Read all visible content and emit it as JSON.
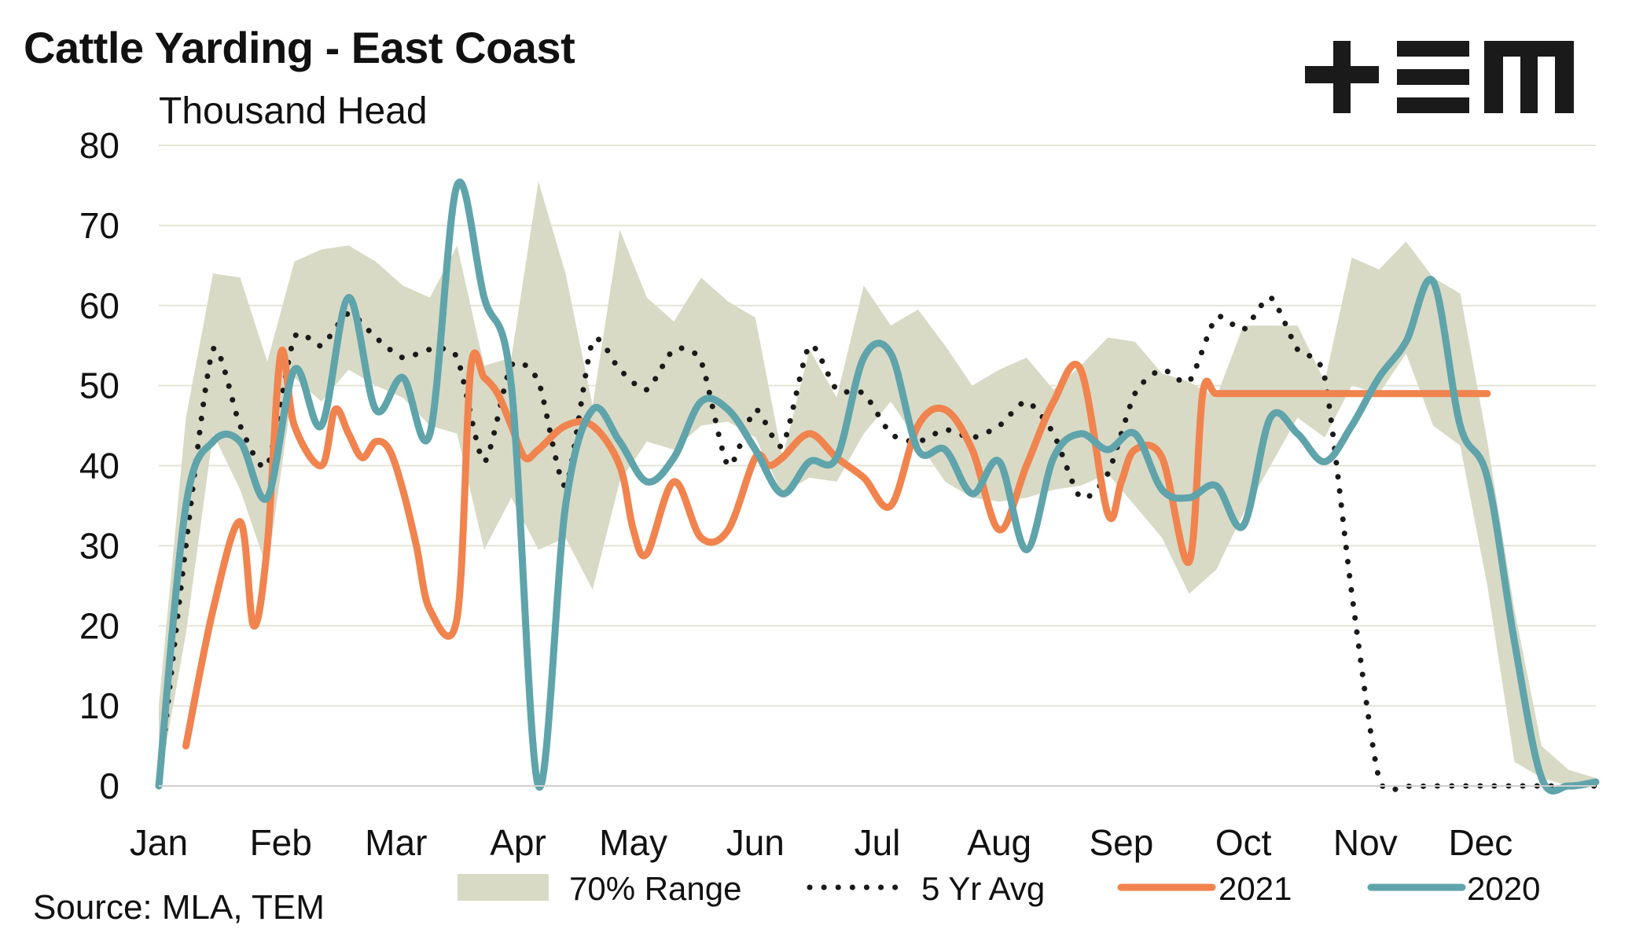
{
  "title": "Cattle Yarding - East Coast",
  "subtitle": "Thousand Head",
  "source": "Source: MLA, TEM",
  "logo_text": "+EM",
  "colors": {
    "range": "#d9dac6",
    "avg": "#1a1a1a",
    "y2021": "#f0834e",
    "y2020": "#5fa3ab",
    "grid": "#e4e4d8"
  },
  "chart_data": {
    "type": "line",
    "title": "Cattle Yarding - East Coast",
    "ylabel": "Thousand Head",
    "ylim": [
      0,
      80
    ],
    "y_ticks": [
      0,
      10,
      20,
      30,
      40,
      50,
      60,
      70,
      80
    ],
    "x_range": [
      0,
      53
    ],
    "x_unit": "week of year",
    "month_labels": [
      "Jan",
      "Feb",
      "Mar",
      "Apr",
      "May",
      "Jun",
      "Jul",
      "Aug",
      "Sep",
      "Oct",
      "Nov",
      "Dec"
    ],
    "month_label_weeks": [
      0,
      4.5,
      8.75,
      13.25,
      17.5,
      22,
      26.5,
      31,
      35.5,
      40,
      44.5,
      48.75
    ],
    "grid": true,
    "legend_position": "bottom",
    "legend": [
      "70% Range",
      "5 Yr Avg",
      "2021",
      "2020"
    ],
    "range_series": {
      "name": "70% Range",
      "x": [
        0,
        1,
        2,
        3,
        4,
        5,
        6,
        7,
        8,
        9,
        10,
        11,
        12,
        13,
        14,
        15,
        16,
        17,
        18,
        19,
        20,
        21,
        22,
        23,
        24,
        25,
        26,
        27,
        28,
        29,
        30,
        31,
        32,
        33,
        34,
        35,
        36,
        37,
        38,
        39,
        40,
        41,
        42,
        43,
        44,
        45,
        46,
        47,
        48,
        49,
        50,
        51,
        52,
        53
      ],
      "upper": [
        10,
        46,
        64,
        63.5,
        53,
        65.5,
        67,
        67.5,
        65.5,
        62.5,
        61,
        67.5,
        52.5,
        53.5,
        75.5,
        64,
        47.5,
        69.5,
        61,
        58,
        63.5,
        60.5,
        58.5,
        41,
        54.5,
        48.5,
        62.5,
        57.5,
        59.5,
        55,
        50,
        52,
        53.5,
        49.5,
        52.5,
        56,
        55.5,
        51.5,
        50.5,
        48.5,
        57.5,
        57.5,
        57.5,
        50.5,
        66,
        64.5,
        68,
        63.5,
        61.5,
        43,
        22,
        5,
        2,
        1
      ],
      "lower": [
        0,
        19,
        44,
        37,
        27,
        51,
        48,
        52,
        50,
        48.5,
        45,
        44,
        29.5,
        36,
        29.5,
        31,
        24.5,
        38,
        43,
        42,
        45,
        45.5,
        43.5,
        36.5,
        38.5,
        38,
        44,
        48,
        43,
        38,
        36,
        35.5,
        36,
        37,
        37.5,
        39,
        35,
        31,
        24,
        27,
        34,
        40,
        46,
        43.5,
        50,
        49,
        54,
        45,
        42.5,
        25,
        3,
        1,
        0,
        0
      ]
    },
    "series": [
      {
        "name": "5 Yr Avg",
        "x": [
          0,
          1,
          2,
          3,
          4,
          5,
          6,
          7,
          8,
          9,
          10,
          11,
          12,
          13,
          14,
          15,
          16,
          17,
          18,
          19,
          20,
          21,
          22,
          23,
          24,
          25,
          26,
          27,
          28,
          29,
          30,
          31,
          32,
          33,
          34,
          35,
          36,
          37,
          38,
          39,
          40,
          41,
          42,
          43,
          44,
          45,
          46,
          47,
          48,
          49,
          50,
          51,
          52,
          53
        ],
        "values": [
          0,
          30,
          54.5,
          45,
          40,
          56,
          55,
          59,
          56,
          53.5,
          54.5,
          53.5,
          40.5,
          52.5,
          50.5,
          37.5,
          55.5,
          52,
          49.5,
          54.5,
          53,
          40,
          47,
          42.5,
          55,
          49.5,
          49,
          44,
          43,
          44.5,
          43.5,
          45,
          48,
          44,
          36,
          39,
          49,
          52,
          50.5,
          58.5,
          57,
          61,
          54.5,
          51,
          24,
          1,
          0,
          0,
          0,
          0,
          0,
          0,
          0,
          0
        ]
      },
      {
        "name": "2021",
        "x": [
          1,
          2,
          3,
          3.5,
          4,
          4.5,
          5,
          6,
          6.5,
          7,
          7.5,
          8,
          8.5,
          9,
          9.5,
          10,
          11,
          11.5,
          12,
          12.5,
          13,
          13.5,
          14,
          15,
          16,
          17,
          17.5,
          18,
          19,
          20,
          21,
          22,
          22.5,
          23,
          24,
          25,
          26,
          27,
          28,
          29,
          30,
          31,
          32,
          33,
          34,
          35,
          35.5,
          36,
          37,
          38,
          38.5,
          39,
          40,
          41,
          42,
          43,
          44,
          45,
          46,
          47,
          48,
          48.5,
          49
        ],
        "values": [
          5,
          22,
          33,
          20,
          30,
          54,
          45,
          40,
          47,
          44,
          41,
          43,
          42,
          37,
          30,
          22,
          21,
          52,
          51,
          49,
          45,
          41,
          42,
          45,
          45,
          40,
          32,
          29,
          38,
          31,
          32,
          41,
          40,
          41,
          44,
          41,
          38.5,
          35,
          45,
          47,
          42,
          32,
          40,
          48,
          52,
          34,
          38,
          42,
          41,
          28,
          49,
          49,
          49,
          49,
          49,
          49,
          49,
          49,
          49,
          49,
          49,
          49,
          49
        ]
      },
      {
        "name": "2020",
        "x": [
          0,
          1,
          2,
          3,
          4,
          5,
          6,
          7,
          8,
          9,
          10,
          11,
          12,
          13,
          14,
          15,
          16,
          17,
          18,
          19,
          20,
          21,
          22,
          23,
          24,
          25,
          26,
          27,
          28,
          29,
          30,
          31,
          32,
          33,
          34,
          35,
          36,
          37,
          38,
          39,
          40,
          41,
          42,
          43,
          44,
          45,
          46,
          47,
          48,
          49,
          50,
          51,
          52,
          53
        ],
        "values": [
          0,
          35,
          43,
          43,
          36,
          52,
          45,
          61,
          47,
          51,
          44,
          75,
          61,
          50,
          0,
          35,
          47,
          43,
          38,
          41,
          48,
          47,
          42,
          36.5,
          40.5,
          41,
          53.5,
          54,
          42,
          42,
          36.5,
          40.5,
          29.5,
          41,
          44,
          42,
          44,
          37,
          36,
          37.5,
          32.5,
          46,
          44,
          40.5,
          45,
          51,
          55.5,
          63,
          45,
          38.5,
          18,
          1,
          0,
          0.5
        ]
      }
    ]
  }
}
